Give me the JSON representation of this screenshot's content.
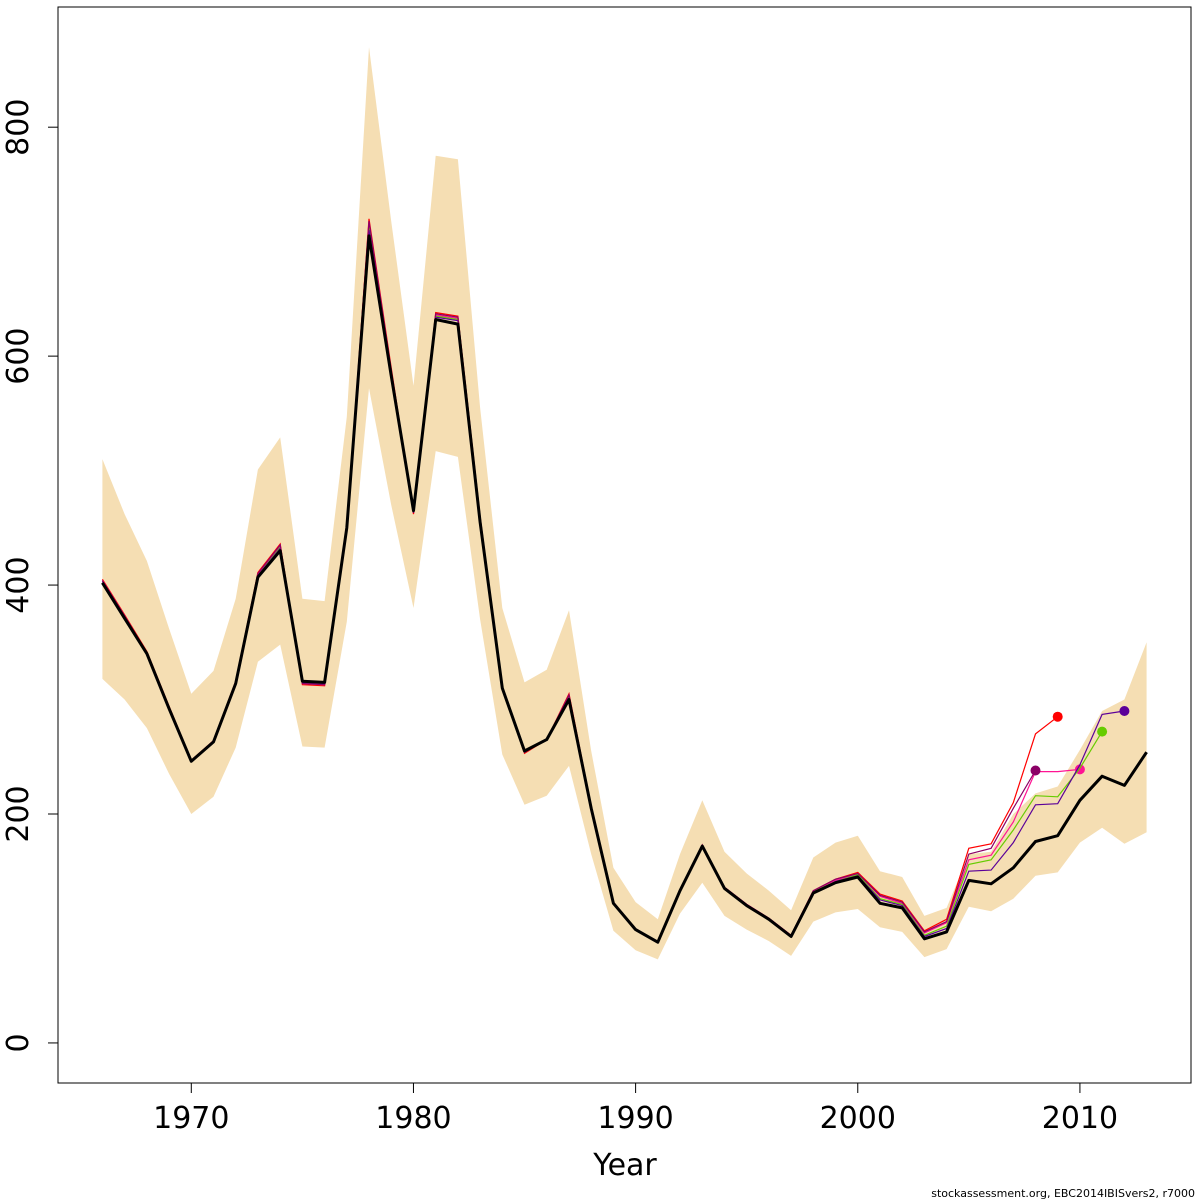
{
  "chart_data": {
    "type": "line",
    "title": "",
    "xlabel": "Year",
    "ylabel": "",
    "xlim": [
      1964,
      2015
    ],
    "ylim": [
      -35,
      905
    ],
    "xticks": [
      1970,
      1980,
      1990,
      2000,
      2010
    ],
    "yticks": [
      0,
      200,
      400,
      600,
      800
    ],
    "grid": false,
    "legend": "none",
    "credit": "stockassessment.org, EBC2014IBISvers2, r7000",
    "colors": {
      "band": "#f5deb3",
      "main": "#000000",
      "peels": [
        "#ff0000",
        "#ff1493",
        "#66cc00",
        "#5b0099",
        "#8b0066"
      ]
    },
    "x": [
      1966,
      1967,
      1968,
      1969,
      1970,
      1971,
      1972,
      1973,
      1974,
      1975,
      1976,
      1977,
      1978,
      1979,
      1980,
      1981,
      1982,
      1983,
      1984,
      1985,
      1986,
      1987,
      1988,
      1989,
      1990,
      1991,
      1992,
      1993,
      1994,
      1995,
      1996,
      1997,
      1998,
      1999,
      2000,
      2001,
      2002,
      2003,
      2004,
      2005,
      2006,
      2007,
      2008,
      2009,
      2010,
      2011,
      2012,
      2013
    ],
    "band_upper": [
      510,
      462,
      421,
      362,
      305,
      325,
      388,
      501,
      529,
      388,
      386,
      547,
      870,
      718,
      574,
      775,
      772,
      555,
      380,
      315,
      326,
      378,
      255,
      153,
      123,
      108,
      165,
      212,
      167,
      148,
      133,
      116,
      162,
      175,
      181,
      150,
      145,
      111,
      118,
      165,
      167,
      200,
      218,
      224,
      256,
      290,
      300,
      350
    ],
    "band_lower": [
      318,
      300,
      275,
      235,
      200,
      215,
      258,
      333,
      348,
      259,
      258,
      368,
      572,
      470,
      380,
      517,
      512,
      370,
      252,
      208,
      216,
      242,
      165,
      98,
      81,
      73,
      113,
      140,
      111,
      99,
      89,
      76,
      106,
      114,
      117,
      101,
      97,
      75,
      82,
      119,
      115,
      126,
      146,
      149,
      175,
      188,
      174,
      184
    ],
    "series": [
      {
        "name": "",
        "values": [
          402,
          371,
          340,
          292,
          246,
          263,
          314,
          407,
          430,
          316,
          315,
          450,
          705,
          583,
          465,
          632,
          628,
          455,
          310,
          255,
          265,
          300,
          205,
          122,
          99,
          88,
          133,
          172,
          135,
          120,
          108,
          93,
          131,
          140,
          145,
          122,
          118,
          91,
          97,
          142,
          139,
          153,
          176,
          181,
          212,
          233,
          225,
          254
        ]
      }
    ],
    "retro_peels": [
      {
        "end": 2009,
        "values": [
          405,
          374,
          342,
          294,
          247,
          264,
          316,
          411,
          436,
          313,
          312,
          450,
          720,
          590,
          462,
          638,
          635,
          460,
          310,
          253,
          265,
          305,
          207,
          123,
          99,
          88,
          133,
          173,
          136,
          121,
          109,
          94,
          133,
          143,
          149,
          130,
          124,
          98,
          108,
          170,
          174,
          210,
          270,
          285
        ]
      },
      {
        "end": 2010,
        "values": [
          404,
          373,
          341,
          293,
          246,
          264,
          315,
          409,
          434,
          314,
          313,
          451,
          716,
          587,
          463,
          636,
          633,
          458,
          310,
          254,
          265,
          303,
          206,
          122,
          99,
          88,
          133,
          172,
          136,
          121,
          109,
          94,
          132,
          142,
          148,
          128,
          122,
          96,
          105,
          160,
          164,
          193,
          237,
          237,
          239
        ]
      },
      {
        "end": 2011,
        "values": [
          403,
          372,
          341,
          293,
          246,
          263,
          315,
          408,
          433,
          315,
          314,
          450,
          712,
          585,
          464,
          635,
          632,
          457,
          310,
          254,
          265,
          302,
          206,
          122,
          99,
          88,
          133,
          172,
          135,
          120,
          108,
          93,
          132,
          141,
          147,
          126,
          121,
          94,
          102,
          156,
          160,
          186,
          216,
          215,
          240,
          272
        ]
      },
      {
        "end": 2012,
        "values": [
          403,
          372,
          340,
          292,
          246,
          263,
          314,
          408,
          432,
          315,
          314,
          450,
          710,
          584,
          464,
          634,
          631,
          456,
          310,
          254,
          265,
          301,
          205,
          122,
          99,
          88,
          133,
          172,
          135,
          120,
          108,
          93,
          131,
          141,
          146,
          125,
          120,
          93,
          100,
          150,
          151,
          175,
          208,
          209,
          243,
          287,
          290
        ]
      },
      {
        "end": 2008,
        "values": [
          404,
          373,
          341,
          293,
          246,
          264,
          315,
          410,
          435,
          314,
          313,
          450,
          718,
          588,
          463,
          637,
          634,
          459,
          310,
          254,
          265,
          304,
          206,
          123,
          99,
          88,
          133,
          173,
          136,
          121,
          109,
          94,
          133,
          143,
          148,
          129,
          123,
          97,
          106,
          165,
          170,
          205,
          238
        ]
      }
    ]
  }
}
